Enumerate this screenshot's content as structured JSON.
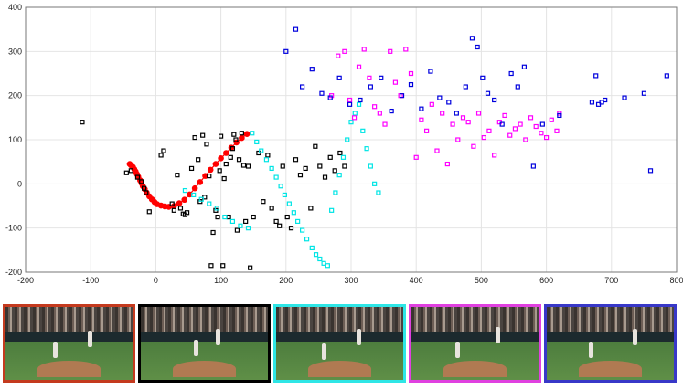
{
  "chart_data": {
    "type": "scatter",
    "title": "",
    "xlabel": "",
    "ylabel": "",
    "xlim": [
      -200,
      800
    ],
    "ylim": [
      -200,
      400
    ],
    "x_ticks": [
      "-200",
      "-100",
      "0",
      "100",
      "200",
      "300",
      "400",
      "500",
      "600",
      "700",
      "800"
    ],
    "y_ticks": [
      "400",
      "300",
      "200",
      "100",
      "0",
      "-100",
      "-200"
    ],
    "grid": true,
    "series": [
      {
        "color": "#ff0000",
        "marker": "circle-line",
        "x": [
          -40,
          -38,
          -35,
          -33,
          -31,
          -29,
          -27,
          -24,
          -22,
          -20,
          -17,
          -14,
          -10,
          -6,
          -2,
          2,
          8,
          14,
          20,
          28,
          36,
          44,
          52,
          60,
          68,
          76,
          84,
          92,
          100,
          108,
          116,
          124,
          132,
          140
        ],
        "y": [
          45,
          42,
          38,
          33,
          28,
          22,
          16,
          8,
          2,
          -5,
          -12,
          -20,
          -28,
          -35,
          -41,
          -46,
          -49,
          -51,
          -52,
          -50,
          -44,
          -36,
          -24,
          -10,
          4,
          18,
          32,
          45,
          58,
          70,
          82,
          94,
          104,
          113
        ]
      },
      {
        "color": "#000000",
        "marker": "square",
        "x": [
          -113,
          -45,
          -38,
          -28,
          -22,
          -18,
          -15,
          -10,
          8,
          12,
          25,
          28,
          33,
          38,
          42,
          45,
          48,
          55,
          60,
          65,
          68,
          72,
          75,
          78,
          82,
          85,
          88,
          92,
          95,
          98,
          100,
          103,
          105,
          108,
          112,
          115,
          118,
          120,
          123,
          125,
          128,
          132,
          135,
          138,
          142,
          145,
          150,
          158,
          165,
          172,
          178,
          185,
          190,
          195,
          202,
          208,
          215,
          222,
          230,
          238,
          245,
          252,
          260,
          268,
          275,
          283,
          290
        ],
        "y": [
          140,
          25,
          30,
          15,
          5,
          -10,
          -20,
          -63,
          65,
          75,
          -45,
          -60,
          20,
          -55,
          -68,
          -70,
          -65,
          35,
          105,
          55,
          -40,
          110,
          -30,
          90,
          18,
          -185,
          -110,
          -60,
          -75,
          30,
          108,
          -185,
          12,
          45,
          -75,
          60,
          80,
          112,
          100,
          -105,
          55,
          115,
          42,
          -85,
          40,
          -190,
          -75,
          70,
          -40,
          65,
          -55,
          -85,
          -95,
          40,
          -75,
          -100,
          55,
          20,
          35,
          -55,
          85,
          40,
          15,
          60,
          30,
          70,
          40
        ]
      },
      {
        "color": "#00e5e5",
        "marker": "square",
        "x": [
          45,
          58,
          70,
          82,
          94,
          106,
          118,
          130,
          142,
          148,
          155,
          162,
          170,
          178,
          185,
          192,
          198,
          205,
          212,
          218,
          225,
          232,
          240,
          246,
          252,
          258,
          264,
          270,
          276,
          282,
          288,
          294,
          300,
          306,
          312,
          318,
          324,
          330,
          336,
          342
        ],
        "y": [
          -15,
          -25,
          -35,
          -45,
          -55,
          -75,
          -85,
          -95,
          -100,
          115,
          95,
          75,
          55,
          35,
          15,
          -5,
          -25,
          -45,
          -65,
          -85,
          -105,
          -125,
          -145,
          -160,
          -170,
          -180,
          -185,
          -60,
          -20,
          20,
          60,
          100,
          140,
          160,
          180,
          120,
          80,
          40,
          0,
          -20
        ]
      },
      {
        "color": "#ff00ff",
        "marker": "square",
        "x": [
          270,
          280,
          290,
          298,
          305,
          312,
          320,
          328,
          336,
          344,
          352,
          360,
          368,
          376,
          384,
          392,
          400,
          408,
          416,
          424,
          432,
          440,
          448,
          456,
          464,
          472,
          480,
          488,
          496,
          504,
          512,
          520,
          528,
          536,
          544,
          552,
          560,
          568,
          576,
          584,
          592,
          600,
          608,
          616,
          620
        ],
        "y": [
          200,
          290,
          300,
          190,
          150,
          265,
          305,
          240,
          175,
          160,
          135,
          300,
          230,
          200,
          305,
          250,
          60,
          145,
          120,
          180,
          75,
          160,
          45,
          135,
          100,
          150,
          140,
          85,
          160,
          105,
          120,
          65,
          140,
          155,
          110,
          125,
          135,
          100,
          150,
          130,
          115,
          105,
          145,
          120,
          160
        ]
      },
      {
        "color": "#0000dd",
        "marker": "square",
        "x": [
          200,
          215,
          225,
          240,
          255,
          268,
          282,
          298,
          314,
          330,
          346,
          362,
          378,
          392,
          408,
          422,
          436,
          450,
          462,
          476,
          486,
          494,
          502,
          510,
          520,
          532,
          546,
          556,
          566,
          580,
          594,
          620,
          670,
          676,
          680,
          685,
          690,
          720,
          750,
          760,
          785
        ],
        "y": [
          300,
          350,
          220,
          260,
          205,
          195,
          240,
          180,
          190,
          220,
          240,
          165,
          200,
          225,
          170,
          255,
          195,
          185,
          160,
          220,
          330,
          310,
          240,
          205,
          190,
          135,
          250,
          220,
          265,
          40,
          135,
          155,
          185,
          245,
          180,
          185,
          190,
          195,
          205,
          30,
          245
        ]
      }
    ]
  },
  "thumbnails": [
    {
      "frame_color": "#c43a1e",
      "logo": "red-frame"
    },
    {
      "frame_color": "#000000",
      "logo": "black-frame"
    },
    {
      "frame_color": "#2ee6e6",
      "logo": "cyan-frame"
    },
    {
      "frame_color": "#e040e0",
      "logo": "magenta-frame"
    },
    {
      "frame_color": "#3838c8",
      "logo": "blue-frame"
    }
  ]
}
